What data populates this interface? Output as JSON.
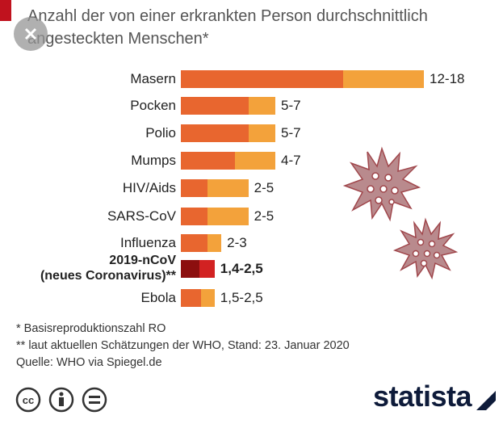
{
  "chart_data": {
    "type": "range-bar",
    "title": "Anzahl der von einer erkrankten Person durchschnittlich angesteckten Menschen*",
    "categories": [
      "Masern",
      "Pocken",
      "Polio",
      "Mumps",
      "HIV/Aids",
      "SARS-CoV",
      "Influenza",
      "2019-nCoV\n(neues Coronavirus)**",
      "Ebola"
    ],
    "ranges": [
      [
        12,
        18
      ],
      [
        5,
        7
      ],
      [
        5,
        7
      ],
      [
        4,
        7
      ],
      [
        2,
        5
      ],
      [
        2,
        5
      ],
      [
        2,
        3
      ],
      [
        1.4,
        2.5
      ],
      [
        1.5,
        2.5
      ]
    ],
    "value_labels": [
      "12-18",
      "5-7",
      "5-7",
      "4-7",
      "2-5",
      "2-5",
      "2-3",
      "1,4-2,5",
      "1,5-2,5"
    ],
    "colors": [
      "#e8662f",
      "#f3a23b"
    ],
    "highlight": {
      "index": 7,
      "colors": [
        "#8c0f0f",
        "#d22222"
      ]
    },
    "xlim": [
      0,
      18
    ],
    "footnotes": [
      "*   Basisreproduktionszahl RO",
      "** laut aktuellen Schätzungen der WHO, Stand: 23. Januar 2020",
      "Quelle: WHO via Spiegel.de"
    ],
    "brand": "statista"
  }
}
